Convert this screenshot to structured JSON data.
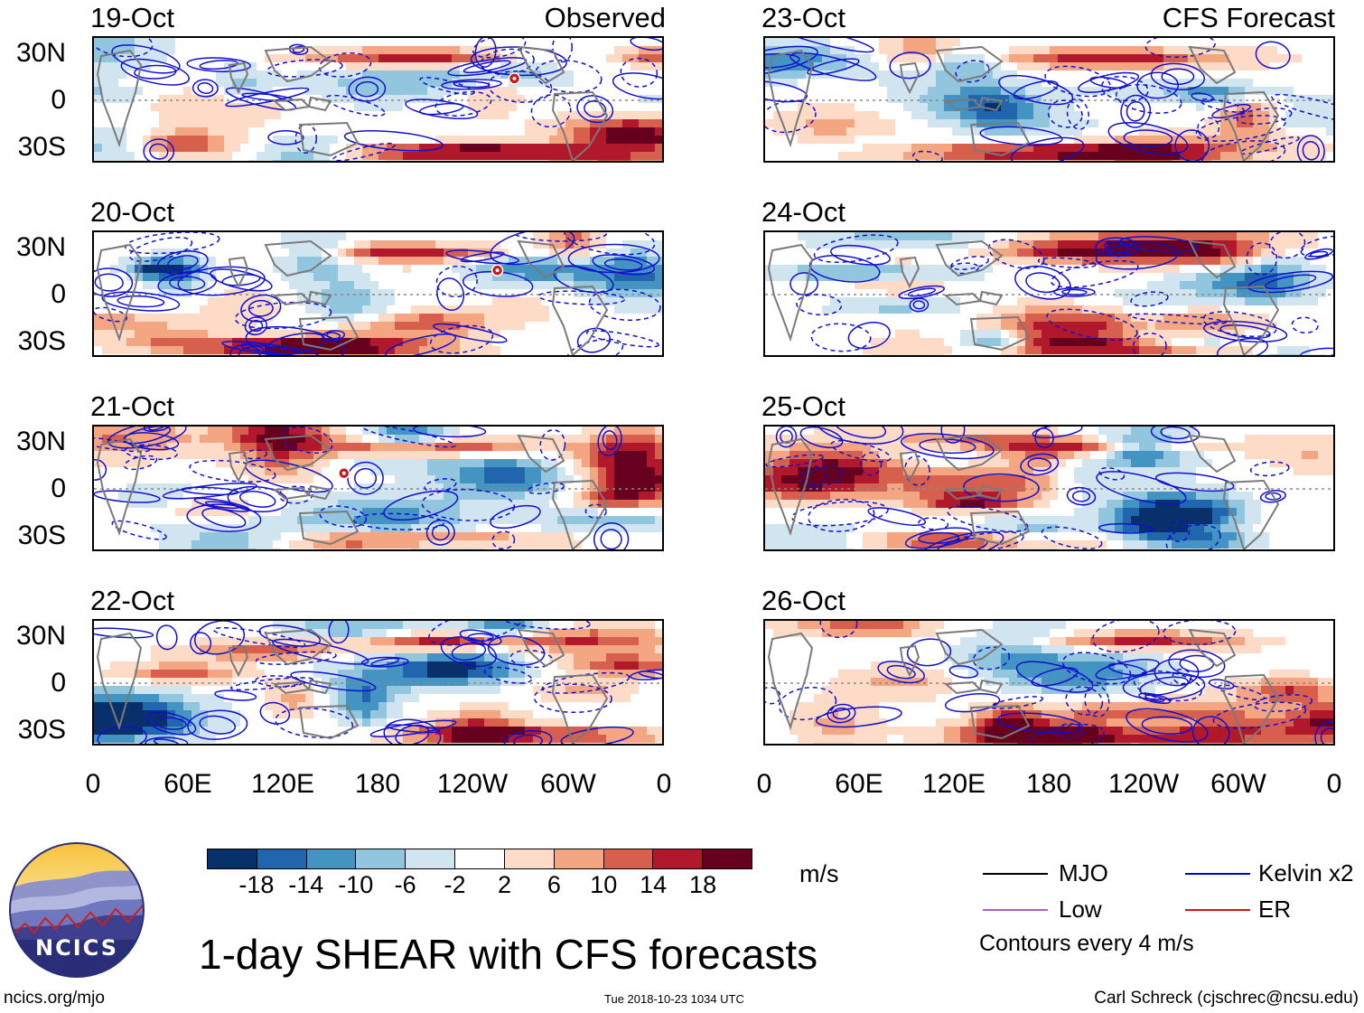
{
  "panels": [
    {
      "date": "19-Oct",
      "tag": "Observed"
    },
    {
      "date": "20-Oct",
      "tag": ""
    },
    {
      "date": "21-Oct",
      "tag": ""
    },
    {
      "date": "22-Oct",
      "tag": ""
    },
    {
      "date": "23-Oct",
      "tag": "CFS Forecast"
    },
    {
      "date": "24-Oct",
      "tag": ""
    },
    {
      "date": "25-Oct",
      "tag": ""
    },
    {
      "date": "26-Oct",
      "tag": ""
    }
  ],
  "lat_labels": [
    "30N",
    "0",
    "30S"
  ],
  "lon_labels": [
    "0",
    "60E",
    "120E",
    "180",
    "120W",
    "60W",
    "0"
  ],
  "colorbar": {
    "unit": "m/s",
    "tick_labels": [
      "-18",
      "-14",
      "-10",
      "-6",
      "-2",
      "2",
      "6",
      "10",
      "14",
      "18"
    ],
    "colors": [
      "#08306b",
      "#2166ac",
      "#4393c3",
      "#92c5de",
      "#d1e5f0",
      "#ffffff",
      "#fddbc7",
      "#f4a582",
      "#d6604d",
      "#b2182b",
      "#67001f"
    ]
  },
  "legend": {
    "mjo": "MJO",
    "mjo_color": "#000000",
    "kelvin": "Kelvin x2",
    "kelvin_color": "#0000cc",
    "low": "Low",
    "low_color": "#b05ec8",
    "er": "ER",
    "er_color": "#dd1111",
    "contours_note": "Contours every 4 m/s"
  },
  "title": "1-day SHEAR with CFS forecasts",
  "logo_text": "NCICS",
  "footer": {
    "url": "ncics.org/mjo",
    "timestamp": "Tue 2018-10-23 1034 UTC",
    "credit": "Carl Schreck (cjschrec@ncsu.edu)"
  }
}
